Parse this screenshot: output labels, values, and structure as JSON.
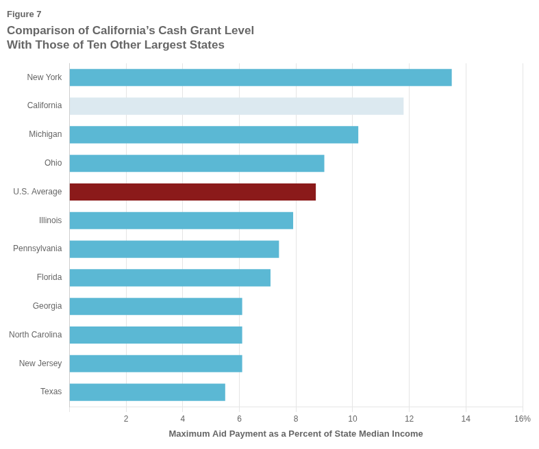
{
  "chart_data": {
    "type": "bar",
    "orientation": "horizontal",
    "subtitle": "Figure 7",
    "title": "Comparison of California’s Cash Grant Level\nWith Those of Ten Other Largest States",
    "categories": [
      "New York",
      "California",
      "Michigan",
      "Ohio",
      "U.S. Average",
      "Illinois",
      "Pennsylvania",
      "Florida",
      "Georgia",
      "North Carolina",
      "New Jersey",
      "Texas"
    ],
    "values": [
      13.5,
      11.8,
      10.2,
      9.0,
      8.7,
      7.9,
      7.4,
      7.1,
      6.1,
      6.1,
      6.1,
      5.5
    ],
    "colors": [
      "#5BB8D4",
      "#DCE9F0",
      "#5BB8D4",
      "#5BB8D4",
      "#8B1A1A",
      "#5BB8D4",
      "#5BB8D4",
      "#5BB8D4",
      "#5BB8D4",
      "#5BB8D4",
      "#5BB8D4",
      "#5BB8D4"
    ],
    "xlabel": "Maximum Aid Payment as a Percent of State Median Income",
    "xlim": [
      0,
      16
    ],
    "xticks": [
      {
        "value": 0,
        "label": null
      },
      2,
      4,
      6,
      8,
      10,
      12,
      14,
      {
        "value": 16,
        "label": "16%"
      }
    ],
    "grid": true
  }
}
